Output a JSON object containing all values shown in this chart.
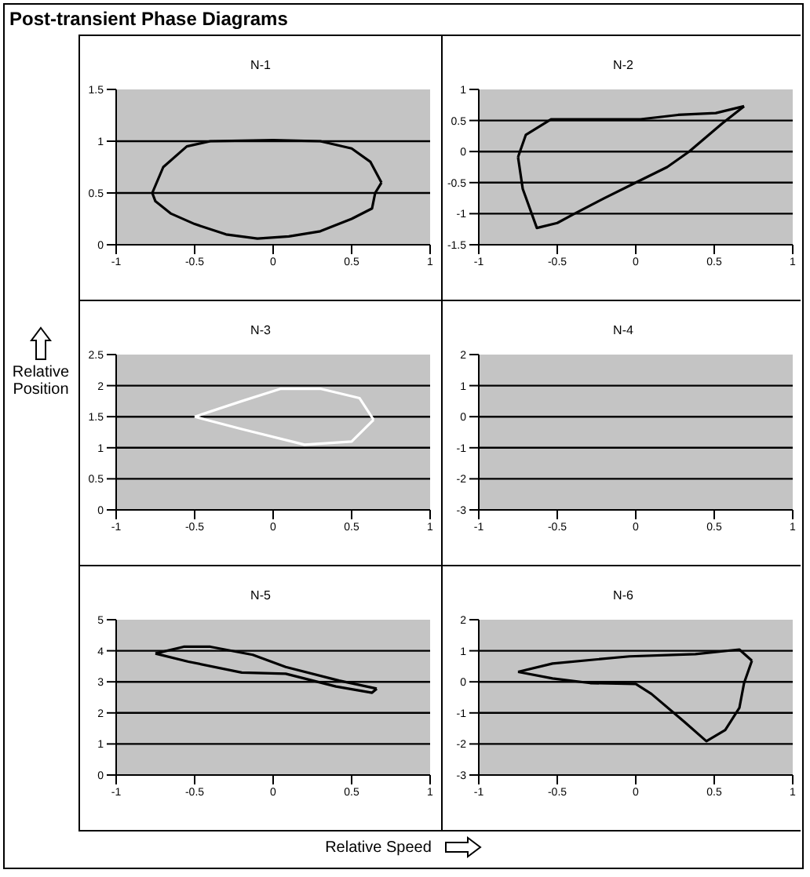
{
  "chart_data": [
    {
      "type": "other",
      "title": "Post-transient Phase Diagrams",
      "annotations": [
        "Relative Position",
        "Relative Speed"
      ]
    },
    {
      "type": "line",
      "title": "N-1",
      "xlim": [
        -1,
        1
      ],
      "xticks": [
        -1,
        -0.5,
        0,
        0.5,
        1
      ],
      "ylim": [
        0,
        1.5
      ],
      "yticks": [
        0,
        0.5,
        1,
        1.5
      ],
      "grid": "y",
      "series": [
        {
          "color": "#000000",
          "x": [
            -0.77,
            -0.7,
            -0.55,
            -0.4,
            0,
            0.3,
            0.5,
            0.62,
            0.69
          ],
          "values": [
            0.5,
            0.75,
            0.95,
            1.0,
            1.01,
            1.0,
            0.93,
            0.8,
            0.6
          ]
        },
        {
          "color": "#000000",
          "x": [
            0.69,
            0.65,
            0.63,
            0.5,
            0.3,
            0.1,
            -0.1,
            -0.3,
            -0.5,
            -0.65,
            -0.75,
            -0.77
          ],
          "values": [
            0.6,
            0.5,
            0.35,
            0.25,
            0.13,
            0.08,
            0.06,
            0.1,
            0.2,
            0.3,
            0.42,
            0.5
          ]
        }
      ]
    },
    {
      "type": "line",
      "title": "N-2",
      "xlim": [
        -1,
        1
      ],
      "xticks": [
        -1,
        -0.5,
        0,
        0.5,
        1
      ],
      "ylim": [
        -1.5,
        1
      ],
      "yticks": [
        -1.5,
        -1,
        -0.5,
        0,
        0.5,
        1
      ],
      "grid": "y",
      "series": [
        {
          "color": "#000000",
          "x": [
            0.69,
            0.51,
            0.27,
            0.03,
            -0.3,
            -0.54,
            -0.7,
            -0.75
          ],
          "values": [
            0.73,
            0.62,
            0.59,
            0.52,
            0.52,
            0.52,
            0.27,
            -0.09
          ]
        },
        {
          "color": "#000000",
          "x": [
            -0.75,
            -0.72,
            -0.63,
            -0.5,
            -0.39,
            -0.2,
            0,
            0.2,
            0.34,
            0.55,
            0.69
          ],
          "values": [
            -0.09,
            -0.6,
            -1.23,
            -1.15,
            -1.0,
            -0.75,
            -0.5,
            -0.25,
            0,
            0.45,
            0.73
          ]
        }
      ]
    },
    {
      "type": "line",
      "title": "N-3",
      "xlim": [
        -1,
        1
      ],
      "xticks": [
        -1,
        -0.5,
        0,
        0.5,
        1
      ],
      "ylim": [
        0,
        2.5
      ],
      "yticks": [
        0,
        0.5,
        1,
        1.5,
        2,
        2.5
      ],
      "grid": "y",
      "series": [
        {
          "color": "#ffffff",
          "x": [
            -0.5,
            -0.2,
            0.2,
            0.5,
            0.64
          ],
          "values": [
            1.5,
            1.3,
            1.05,
            1.1,
            1.45
          ]
        },
        {
          "color": "#ffffff",
          "x": [
            0.64,
            0.55,
            0.3,
            0.05,
            -0.2,
            -0.5
          ],
          "values": [
            1.45,
            1.8,
            1.95,
            1.95,
            1.75,
            1.5
          ]
        }
      ]
    },
    {
      "type": "line",
      "title": "N-4",
      "xlim": [
        -1,
        1
      ],
      "xticks": [
        -1,
        -0.5,
        0,
        0.5,
        1
      ],
      "ylim": [
        -3,
        2
      ],
      "yticks": [
        -3,
        -2,
        -1,
        0,
        1,
        2
      ],
      "grid": "y"
    },
    {
      "type": "line",
      "title": "N-5",
      "xlim": [
        -1,
        1
      ],
      "xticks": [
        -1,
        -0.5,
        0,
        0.5,
        1
      ],
      "ylim": [
        0,
        5
      ],
      "yticks": [
        0,
        1,
        2,
        3,
        4,
        5
      ],
      "grid": "y",
      "series": [
        {
          "color": "#000000",
          "x": [
            -0.75,
            -0.57,
            -0.4,
            -0.13,
            0.08,
            0.42,
            0.66
          ],
          "values": [
            3.91,
            4.13,
            4.13,
            3.87,
            3.48,
            3.04,
            2.78
          ]
        },
        {
          "color": "#000000",
          "x": [
            0.66,
            0.63,
            0.4,
            0.08,
            -0.2,
            -0.54,
            -0.75
          ],
          "values": [
            2.78,
            2.65,
            2.85,
            3.26,
            3.3,
            3.65,
            3.91
          ]
        }
      ]
    },
    {
      "type": "line",
      "title": "N-6",
      "xlim": [
        -1,
        1
      ],
      "xticks": [
        -1,
        -0.5,
        0,
        0.5,
        1
      ],
      "ylim": [
        -3,
        2
      ],
      "yticks": [
        -3,
        -2,
        -1,
        0,
        1,
        2
      ],
      "grid": "y",
      "series": [
        {
          "color": "#000000",
          "x": [
            -0.75,
            -0.53,
            -0.04,
            0.38,
            0.66,
            0.74
          ],
          "values": [
            0.32,
            0.59,
            0.82,
            0.89,
            1.04,
            0.68
          ]
        },
        {
          "color": "#000000",
          "x": [
            0.74,
            0.69,
            0.66,
            0.57,
            0.45,
            0.31,
            0.1,
            0,
            -0.29,
            -0.53,
            -0.75
          ],
          "values": [
            0.68,
            -0.04,
            -0.84,
            -1.55,
            -1.91,
            -1.29,
            -0.39,
            -0.07,
            -0.04,
            0.11,
            0.32
          ]
        }
      ]
    }
  ]
}
